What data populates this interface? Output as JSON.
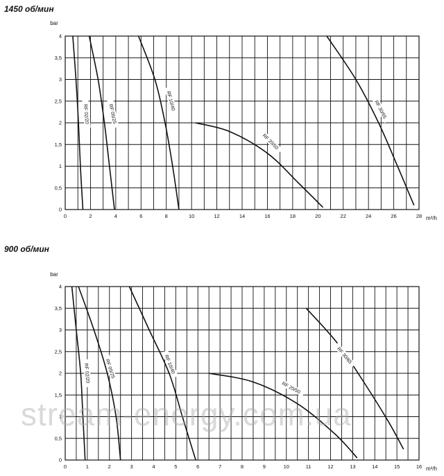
{
  "chart_data": [
    {
      "type": "line",
      "title": "1450 об/мин",
      "ylabel": "bar",
      "xlabel": "m³/h",
      "xlim": [
        0,
        28
      ],
      "ylim": [
        0,
        4
      ],
      "xticks": [
        "0",
        "2",
        "4",
        "6",
        "8",
        "10",
        "12",
        "14",
        "16",
        "18",
        "20",
        "22",
        "24",
        "26",
        "28"
      ],
      "yticks": [
        "0",
        "0,5",
        "1",
        "1,5",
        "2",
        "2,5",
        "3",
        "3,5",
        "4"
      ],
      "grid": true,
      "series": [
        {
          "name": "RF 02/20",
          "points": [
            [
              0.6,
              4
            ],
            [
              0.85,
              3
            ],
            [
              1.05,
              2
            ],
            [
              1.2,
              1
            ],
            [
              1.4,
              0
            ]
          ],
          "label_at": [
            1.6,
            2.2
          ],
          "label_angle": 85
        },
        {
          "name": "RF 05/25",
          "points": [
            [
              1.9,
              4
            ],
            [
              2.6,
              3
            ],
            [
              3.1,
              2
            ],
            [
              3.5,
              1
            ],
            [
              3.9,
              0
            ]
          ],
          "label_at": [
            3.7,
            2.2
          ],
          "label_angle": 78
        },
        {
          "name": "RF 10/40",
          "points": [
            [
              5.8,
              4
            ],
            [
              7.1,
              3
            ],
            [
              7.9,
              2
            ],
            [
              8.5,
              1
            ],
            [
              9.0,
              0
            ]
          ],
          "label_at": [
            8.3,
            2.5
          ],
          "label_angle": 75
        },
        {
          "name": "RF 20/50",
          "points": [
            [
              10.3,
              2
            ],
            [
              13,
              1.8
            ],
            [
              16,
              1.3
            ],
            [
              18.5,
              0.6
            ],
            [
              20.4,
              0.05
            ]
          ],
          "label_at": [
            16.2,
            1.55
          ],
          "label_angle": 45
        },
        {
          "name": "RF 30/65",
          "points": [
            [
              20.7,
              4
            ],
            [
              23,
              3
            ],
            [
              24.8,
              2
            ],
            [
              26.3,
              1
            ],
            [
              27.6,
              0.1
            ]
          ],
          "label_at": [
            24.9,
            2.3
          ],
          "label_angle": 62
        }
      ]
    },
    {
      "type": "line",
      "title": "900 об/мин",
      "ylabel": "bar",
      "xlabel": "m³/h",
      "xlim": [
        0,
        16
      ],
      "ylim": [
        0,
        4
      ],
      "xticks": [
        "0",
        "1",
        "2",
        "3",
        "4",
        "5",
        "6",
        "7",
        "8",
        "9",
        "10",
        "11",
        "12",
        "13",
        "14",
        "15",
        "16"
      ],
      "yticks": [
        "0",
        "0,5",
        "1",
        "1,5",
        "2",
        "2,5",
        "3",
        "3,5",
        "4"
      ],
      "grid": true,
      "series": [
        {
          "name": "RF 02/20",
          "points": [
            [
              0.3,
              4
            ],
            [
              0.5,
              3
            ],
            [
              0.7,
              2
            ],
            [
              0.8,
              1
            ],
            [
              0.9,
              0
            ]
          ],
          "label_at": [
            0.95,
            2.0
          ],
          "label_angle": 85
        },
        {
          "name": "RF 05/25",
          "points": [
            [
              0.6,
              4
            ],
            [
              1.3,
              3
            ],
            [
              1.9,
              2
            ],
            [
              2.3,
              1
            ],
            [
              2.5,
              0
            ]
          ],
          "label_at": [
            2.0,
            2.1
          ],
          "label_angle": 72
        },
        {
          "name": "RF 10/40",
          "points": [
            [
              2.9,
              4
            ],
            [
              3.8,
              3
            ],
            [
              4.7,
              2
            ],
            [
              5.3,
              1
            ],
            [
              5.9,
              0
            ]
          ],
          "label_at": [
            4.7,
            2.2
          ],
          "label_angle": 68
        },
        {
          "name": "RF 20/50",
          "points": [
            [
              6.5,
              2
            ],
            [
              8.5,
              1.8
            ],
            [
              10.5,
              1.3
            ],
            [
              12.2,
              0.6
            ],
            [
              13.2,
              0.05
            ]
          ],
          "label_at": [
            10.2,
            1.65
          ],
          "label_angle": 28
        },
        {
          "name": "RF 30/65",
          "points": [
            [
              10.9,
              3.5
            ],
            [
              12.3,
              2.7
            ],
            [
              13.5,
              1.8
            ],
            [
              14.6,
              0.9
            ],
            [
              15.3,
              0.25
            ]
          ],
          "label_at": [
            12.6,
            2.4
          ],
          "label_angle": 50
        }
      ]
    }
  ],
  "watermark": "stream-energy.com.ua"
}
